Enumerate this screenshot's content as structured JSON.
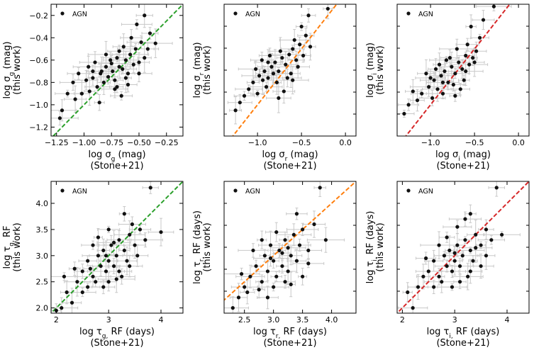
{
  "legend_label": "AGN",
  "chart_data": [
    {
      "type": "scatter",
      "band": "g",
      "quantity": "sigma",
      "color": "#2ca02c",
      "xlabel": [
        "log σ_g (mag)",
        "(Stone+21)"
      ],
      "ylabel": [
        "log σ_g (mag)",
        "(this work)"
      ],
      "xlim": [
        -1.3,
        -0.1
      ],
      "ylim": [
        -1.28,
        -0.1
      ],
      "xticks": [
        -1.25,
        -1.0,
        -0.75,
        -0.5,
        -0.25
      ],
      "xticklabels": [
        "−1.25",
        "−1.00",
        "−0.75",
        "−0.50",
        "−0.25"
      ],
      "yticks": [
        -1.2,
        -1.0,
        -0.8,
        -0.6,
        -0.4,
        -0.2
      ],
      "yticklabels": [
        "−1.2",
        "−1.0",
        "−0.8",
        "−0.6",
        "−0.4",
        "−0.2"
      ],
      "reference_line": "one-to-one",
      "legend": "AGN",
      "legend_position": "top-left",
      "points": [
        [
          -0.98,
          -0.78
        ],
        [
          -0.92,
          -0.7
        ],
        [
          -0.85,
          -0.72
        ],
        [
          -0.8,
          -0.66
        ],
        [
          -0.75,
          -0.63
        ],
        [
          -0.72,
          -0.78
        ],
        [
          -0.7,
          -0.58
        ],
        [
          -0.68,
          -0.52
        ],
        [
          -0.65,
          -0.68
        ],
        [
          -0.62,
          -0.6
        ],
        [
          -0.6,
          -0.72
        ],
        [
          -0.58,
          -0.55
        ],
        [
          -0.55,
          -0.64
        ],
        [
          -0.53,
          -0.5
        ],
        [
          -0.5,
          -0.62
        ],
        [
          -0.48,
          -0.44
        ],
        [
          -0.45,
          -0.58
        ],
        [
          -0.42,
          -0.5
        ],
        [
          -0.88,
          -0.84
        ],
        [
          -0.82,
          -0.8
        ],
        [
          -0.78,
          -0.75
        ],
        [
          -0.95,
          -0.88
        ],
        [
          -1.02,
          -0.9
        ],
        [
          -1.05,
          -0.72
        ],
        [
          -1.1,
          -0.8
        ],
        [
          -0.9,
          -0.62
        ],
        [
          -0.7,
          -0.84
        ],
        [
          -0.66,
          -0.92
        ],
        [
          -0.86,
          -0.98
        ],
        [
          -1.2,
          -1.05
        ],
        [
          -1.22,
          -1.12
        ],
        [
          -0.74,
          -0.7
        ],
        [
          -0.64,
          -0.48
        ],
        [
          -0.57,
          -0.4
        ],
        [
          -0.4,
          -0.36
        ],
        [
          -0.52,
          -0.28
        ],
        [
          -0.45,
          -0.2
        ],
        [
          -0.35,
          -0.45
        ],
        [
          -0.8,
          -0.55
        ],
        [
          -0.96,
          -0.66
        ],
        [
          -1.15,
          -0.9
        ],
        [
          -0.6,
          -0.82
        ],
        [
          -0.76,
          -0.6
        ],
        [
          -0.68,
          -0.66
        ],
        [
          -0.84,
          -0.7
        ],
        [
          -0.92,
          -0.76
        ],
        [
          -0.5,
          -0.72
        ],
        [
          -0.62,
          -0.76
        ],
        [
          -1.08,
          -0.95
        ],
        [
          -0.72,
          -0.86
        ]
      ]
    },
    {
      "type": "scatter",
      "band": "r",
      "quantity": "sigma",
      "color": "#ff7f0e",
      "xlabel": [
        "log σ_r (mag)",
        "(Stone+21)"
      ],
      "ylabel": [
        "log σ_r (mag)",
        "(this work)"
      ],
      "xlim": [
        -1.38,
        0.12
      ],
      "ylim": [
        -1.28,
        -0.1
      ],
      "xticks": [
        -1.0,
        -0.5,
        0.0
      ],
      "xticklabels": [
        "−1.0",
        "−0.5",
        "0.0"
      ],
      "yticks": [],
      "yticklabels": [],
      "reference_line": "one-to-one",
      "legend": "AGN",
      "legend_position": "top-left",
      "points": [
        [
          -1.05,
          -0.8
        ],
        [
          -0.98,
          -0.74
        ],
        [
          -0.92,
          -0.7
        ],
        [
          -0.88,
          -0.76
        ],
        [
          -0.84,
          -0.66
        ],
        [
          -0.8,
          -0.62
        ],
        [
          -0.76,
          -0.7
        ],
        [
          -0.72,
          -0.58
        ],
        [
          -0.68,
          -0.64
        ],
        [
          -0.64,
          -0.55
        ],
        [
          -0.6,
          -0.5
        ],
        [
          -0.56,
          -0.6
        ],
        [
          -0.52,
          -0.46
        ],
        [
          -0.48,
          -0.56
        ],
        [
          -0.9,
          -0.84
        ],
        [
          -1.0,
          -0.9
        ],
        [
          -1.1,
          -0.86
        ],
        [
          -1.15,
          -0.92
        ],
        [
          -0.95,
          -0.6
        ],
        [
          -0.78,
          -0.8
        ],
        [
          -0.7,
          -0.88
        ],
        [
          -0.62,
          -0.72
        ],
        [
          -0.58,
          -0.42
        ],
        [
          -0.45,
          -0.38
        ],
        [
          -0.4,
          -0.48
        ],
        [
          -0.5,
          -0.3
        ],
        [
          -0.42,
          -0.2
        ],
        [
          -0.2,
          -0.14
        ],
        [
          -0.86,
          -0.56
        ],
        [
          -0.74,
          -0.52
        ],
        [
          -1.2,
          -0.98
        ],
        [
          -1.25,
          -1.05
        ],
        [
          -0.66,
          -0.76
        ],
        [
          -0.82,
          -0.72
        ],
        [
          -0.94,
          -0.78
        ],
        [
          -1.02,
          -0.68
        ],
        [
          -0.54,
          -0.66
        ],
        [
          -0.6,
          -0.78
        ],
        [
          -0.76,
          -0.94
        ],
        [
          -0.88,
          -0.62
        ]
      ]
    },
    {
      "type": "scatter",
      "band": "i",
      "quantity": "sigma",
      "color": "#d62728",
      "xlabel": [
        "log σ_i (mag)",
        "(Stone+21)"
      ],
      "ylabel": [
        "log σ_i (mag)",
        "(this work)"
      ],
      "xlim": [
        -1.38,
        0.12
      ],
      "ylim": [
        -1.28,
        -0.1
      ],
      "xticks": [
        -1.0,
        -0.5,
        0.0
      ],
      "xticklabels": [
        "−1.0",
        "−0.5",
        "0.0"
      ],
      "yticks": [],
      "yticklabels": [],
      "reference_line": "one-to-one",
      "legend": "AGN",
      "legend_position": "top-left",
      "points": [
        [
          -1.1,
          -0.9
        ],
        [
          -1.02,
          -0.84
        ],
        [
          -0.96,
          -0.78
        ],
        [
          -0.92,
          -0.86
        ],
        [
          -0.88,
          -0.74
        ],
        [
          -0.84,
          -0.7
        ],
        [
          -0.8,
          -0.8
        ],
        [
          -0.76,
          -0.66
        ],
        [
          -0.72,
          -0.72
        ],
        [
          -0.68,
          -0.62
        ],
        [
          -0.64,
          -0.68
        ],
        [
          -0.6,
          -0.56
        ],
        [
          -0.56,
          -0.64
        ],
        [
          -0.52,
          -0.58
        ],
        [
          -1.15,
          -0.96
        ],
        [
          -1.2,
          -0.88
        ],
        [
          -1.05,
          -0.72
        ],
        [
          -0.98,
          -0.94
        ],
        [
          -0.86,
          -0.9
        ],
        [
          -0.78,
          -0.58
        ],
        [
          -0.7,
          -0.5
        ],
        [
          -0.62,
          -0.78
        ],
        [
          -0.58,
          -0.46
        ],
        [
          -0.48,
          -0.52
        ],
        [
          -0.44,
          -0.4
        ],
        [
          -0.54,
          -0.3
        ],
        [
          -0.4,
          -0.24
        ],
        [
          -0.28,
          -0.12
        ],
        [
          -1.25,
          -1.0
        ],
        [
          -1.3,
          -1.08
        ],
        [
          -0.9,
          -0.64
        ],
        [
          -0.82,
          -0.6
        ],
        [
          -0.74,
          -0.82
        ],
        [
          -0.66,
          -0.86
        ],
        [
          -1.0,
          -0.76
        ],
        [
          -0.94,
          -0.68
        ],
        [
          -0.6,
          -0.7
        ],
        [
          -0.5,
          -0.62
        ],
        [
          -0.86,
          -0.8
        ],
        [
          -0.72,
          -0.92
        ]
      ]
    },
    {
      "type": "scatter",
      "band": "g",
      "quantity": "tau",
      "color": "#2ca02c",
      "xlabel": [
        "log τ_g, RF (days)",
        "(Stone+21)"
      ],
      "ylabel": [
        "log τ_g, RF",
        "(this work)"
      ],
      "xlim": [
        1.9,
        4.42
      ],
      "ylim": [
        1.9,
        4.42
      ],
      "xticks": [
        2,
        3,
        4
      ],
      "xticklabels": [
        "2",
        "3",
        "4"
      ],
      "yticks": [
        2.0,
        2.5,
        3.0,
        3.5,
        4.0
      ],
      "yticklabels": [
        "2.0",
        "2.5",
        "3.0",
        "3.5",
        "4.0"
      ],
      "reference_line": "one-to-one",
      "legend": "AGN",
      "legend_position": "top-left",
      "points": [
        [
          2.2,
          2.3
        ],
        [
          2.4,
          2.5
        ],
        [
          2.5,
          2.7
        ],
        [
          2.6,
          2.9
        ],
        [
          2.7,
          2.6
        ],
        [
          2.8,
          3.0
        ],
        [
          2.85,
          2.8
        ],
        [
          2.9,
          3.1
        ],
        [
          2.95,
          2.7
        ],
        [
          3.0,
          2.9
        ],
        [
          3.05,
          3.2
        ],
        [
          3.1,
          2.8
        ],
        [
          3.15,
          3.0
        ],
        [
          3.2,
          3.3
        ],
        [
          3.25,
          2.6
        ],
        [
          3.3,
          3.1
        ],
        [
          3.35,
          2.9
        ],
        [
          3.4,
          3.4
        ],
        [
          3.5,
          3.2
        ],
        [
          3.6,
          3.5
        ],
        [
          3.7,
          3.3
        ],
        [
          3.8,
          4.3
        ],
        [
          3.3,
          3.8
        ],
        [
          2.3,
          2.1
        ],
        [
          2.1,
          2.0
        ],
        [
          2.6,
          2.4
        ],
        [
          2.75,
          2.5
        ],
        [
          2.9,
          2.4
        ],
        [
          3.0,
          2.5
        ],
        [
          3.2,
          2.7
        ],
        [
          3.4,
          2.8
        ],
        [
          2.7,
          3.2
        ],
        [
          2.8,
          3.35
        ],
        [
          3.0,
          3.5
        ],
        [
          2.5,
          2.3
        ],
        [
          2.35,
          2.75
        ],
        [
          3.55,
          3.0
        ],
        [
          3.15,
          2.55
        ],
        [
          2.65,
          2.75
        ],
        [
          2.95,
          3.0
        ],
        [
          3.1,
          3.25
        ],
        [
          4.0,
          3.45
        ],
        [
          2.0,
          1.95
        ],
        [
          2.15,
          2.6
        ],
        [
          3.45,
          3.6
        ]
      ]
    },
    {
      "type": "scatter",
      "band": "r",
      "quantity": "tau",
      "color": "#ff7f0e",
      "xlabel": [
        "log τ_r, RF (days)",
        "(Stone+21)"
      ],
      "ylabel": [
        "log τ_r, RF (days)",
        "(this work)"
      ],
      "xlim": [
        2.15,
        4.42
      ],
      "ylim": [
        1.9,
        4.42
      ],
      "xticks": [
        2.5,
        3.0,
        3.5,
        4.0
      ],
      "xticklabels": [
        "2.5",
        "3.0",
        "3.5",
        "4.0"
      ],
      "yticks": [],
      "yticklabels": [],
      "reference_line": "one-to-one",
      "legend": "AGN",
      "legend_position": "top-left",
      "points": [
        [
          2.4,
          2.2
        ],
        [
          2.5,
          2.4
        ],
        [
          2.6,
          2.6
        ],
        [
          2.7,
          2.8
        ],
        [
          2.8,
          2.5
        ],
        [
          2.85,
          3.0
        ],
        [
          2.9,
          2.7
        ],
        [
          2.95,
          3.2
        ],
        [
          3.0,
          2.9
        ],
        [
          3.05,
          2.6
        ],
        [
          3.1,
          3.1
        ],
        [
          3.15,
          2.8
        ],
        [
          3.2,
          3.3
        ],
        [
          3.25,
          2.7
        ],
        [
          3.3,
          3.0
        ],
        [
          3.35,
          3.4
        ],
        [
          3.4,
          2.9
        ],
        [
          3.45,
          3.2
        ],
        [
          3.5,
          3.5
        ],
        [
          3.6,
          3.1
        ],
        [
          3.7,
          3.6
        ],
        [
          3.8,
          4.3
        ],
        [
          3.4,
          3.8
        ],
        [
          2.3,
          2.0
        ],
        [
          2.55,
          2.3
        ],
        [
          2.75,
          2.35
        ],
        [
          3.0,
          2.4
        ],
        [
          3.2,
          2.5
        ],
        [
          3.5,
          2.6
        ],
        [
          2.65,
          3.1
        ],
        [
          2.8,
          3.3
        ],
        [
          3.05,
          3.45
        ],
        [
          3.3,
          2.45
        ],
        [
          2.9,
          2.2
        ],
        [
          3.6,
          2.85
        ],
        [
          3.9,
          3.3
        ],
        [
          2.45,
          2.65
        ],
        [
          3.15,
          3.05
        ],
        [
          3.25,
          3.15
        ],
        [
          2.95,
          2.95
        ]
      ]
    },
    {
      "type": "scatter",
      "band": "i",
      "quantity": "tau",
      "color": "#d62728",
      "xlabel": [
        "log τ_i, RF (days)",
        "(Stone+21)"
      ],
      "ylabel": [
        "log τ_i, RF (days)",
        "(this work)"
      ],
      "xlim": [
        1.9,
        4.42
      ],
      "ylim": [
        1.9,
        4.42
      ],
      "xticks": [
        2,
        3,
        4
      ],
      "xticklabels": [
        "2",
        "3",
        "4"
      ],
      "yticks": [],
      "yticklabels": [],
      "reference_line": "one-to-one",
      "legend": "AGN",
      "legend_position": "top-left",
      "points": [
        [
          2.3,
          2.4
        ],
        [
          2.4,
          2.6
        ],
        [
          2.5,
          2.7
        ],
        [
          2.6,
          2.9
        ],
        [
          2.7,
          2.6
        ],
        [
          2.8,
          3.0
        ],
        [
          2.85,
          2.8
        ],
        [
          2.9,
          3.1
        ],
        [
          2.95,
          2.7
        ],
        [
          3.0,
          2.9
        ],
        [
          3.05,
          3.2
        ],
        [
          3.1,
          2.8
        ],
        [
          3.15,
          3.0
        ],
        [
          3.2,
          3.3
        ],
        [
          3.25,
          2.6
        ],
        [
          3.3,
          3.1
        ],
        [
          3.35,
          2.9
        ],
        [
          3.4,
          3.4
        ],
        [
          3.5,
          3.2
        ],
        [
          3.6,
          3.5
        ],
        [
          3.7,
          3.3
        ],
        [
          3.8,
          4.3
        ],
        [
          3.3,
          3.8
        ],
        [
          2.1,
          2.3
        ],
        [
          2.2,
          2.0
        ],
        [
          2.6,
          2.4
        ],
        [
          2.75,
          2.5
        ],
        [
          2.95,
          2.4
        ],
        [
          3.1,
          2.5
        ],
        [
          3.3,
          2.7
        ],
        [
          3.5,
          2.8
        ],
        [
          2.7,
          3.2
        ],
        [
          2.85,
          3.35
        ],
        [
          3.05,
          3.55
        ],
        [
          3.2,
          3.7
        ],
        [
          2.45,
          2.95
        ],
        [
          3.6,
          3.0
        ],
        [
          3.9,
          3.4
        ],
        [
          3.0,
          3.05
        ],
        [
          3.4,
          3.15
        ]
      ]
    }
  ]
}
